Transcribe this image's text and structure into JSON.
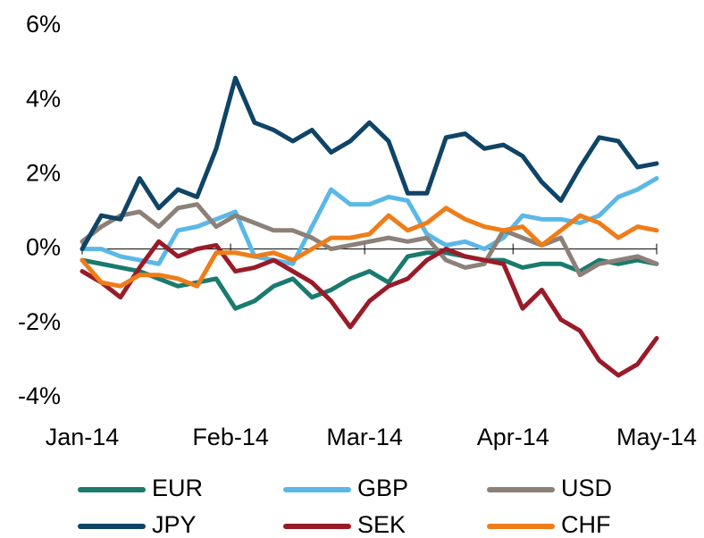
{
  "chart_data": {
    "type": "line",
    "x": [
      0,
      4,
      8,
      12,
      16,
      20,
      24,
      28,
      32,
      36,
      40,
      44,
      48,
      52,
      56,
      60,
      64,
      68,
      72,
      76,
      80,
      84,
      88,
      92,
      96,
      100,
      104,
      108,
      112,
      116,
      120
    ],
    "xlim": [
      0,
      120
    ],
    "xticks": [
      {
        "value": 0,
        "label": "Jan-14"
      },
      {
        "value": 31,
        "label": "Feb-14"
      },
      {
        "value": 59,
        "label": "Mar-14"
      },
      {
        "value": 90,
        "label": "Apr-14"
      },
      {
        "value": 120,
        "label": "May-14"
      }
    ],
    "ylim": [
      -4,
      6
    ],
    "yticks": [
      {
        "value": -4,
        "label": "-4%"
      },
      {
        "value": -2,
        "label": "-2%"
      },
      {
        "value": 0,
        "label": "0%"
      },
      {
        "value": 2,
        "label": "2%"
      },
      {
        "value": 4,
        "label": "4%"
      },
      {
        "value": 6,
        "label": "6%"
      }
    ],
    "series": [
      {
        "name": "EUR",
        "color": "#1a7a6e",
        "values": [
          -0.3,
          -0.4,
          -0.5,
          -0.6,
          -0.8,
          -1.0,
          -0.9,
          -0.8,
          -1.6,
          -1.4,
          -1.0,
          -0.8,
          -1.3,
          -1.1,
          -0.8,
          -0.6,
          -0.9,
          -0.2,
          -0.1,
          -0.1,
          -0.2,
          -0.3,
          -0.3,
          -0.5,
          -0.4,
          -0.4,
          -0.6,
          -0.3,
          -0.4,
          -0.3,
          -0.4
        ]
      },
      {
        "name": "GBP",
        "color": "#5bb8e6",
        "values": [
          0,
          0,
          -0.2,
          -0.3,
          -0.4,
          0.5,
          0.6,
          0.8,
          1.0,
          -0.2,
          -0.3,
          -0.4,
          0.6,
          1.6,
          1.2,
          1.2,
          1.4,
          1.3,
          0.4,
          0.1,
          0.2,
          0.0,
          0.3,
          0.9,
          0.8,
          0.8,
          0.7,
          0.9,
          1.4,
          1.6,
          1.9
        ]
      },
      {
        "name": "USD",
        "color": "#8c8078",
        "values": [
          0.2,
          0.6,
          0.9,
          1.0,
          0.6,
          1.1,
          1.2,
          0.6,
          0.9,
          0.7,
          0.5,
          0.5,
          0.3,
          0.0,
          0.1,
          0.2,
          0.3,
          0.2,
          0.3,
          -0.3,
          -0.5,
          -0.4,
          0.5,
          0.3,
          0.1,
          0.3,
          -0.7,
          -0.4,
          -0.3,
          -0.2,
          -0.4
        ]
      },
      {
        "name": "JPY",
        "color": "#0f4466",
        "values": [
          0,
          0.9,
          0.8,
          1.9,
          1.1,
          1.6,
          1.4,
          2.7,
          4.6,
          3.4,
          3.2,
          2.9,
          3.2,
          2.6,
          2.9,
          3.4,
          2.9,
          1.5,
          1.5,
          3.0,
          3.1,
          2.7,
          2.8,
          2.5,
          1.8,
          1.3,
          2.2,
          3.0,
          2.9,
          2.2,
          2.3
        ]
      },
      {
        "name": "SEK",
        "color": "#9a1b28",
        "values": [
          -0.6,
          -0.9,
          -1.3,
          -0.5,
          0.2,
          -0.2,
          0.0,
          0.1,
          -0.6,
          -0.5,
          -0.3,
          -0.6,
          -0.9,
          -1.4,
          -2.1,
          -1.4,
          -1.0,
          -0.8,
          -0.3,
          0.0,
          -0.2,
          -0.3,
          -0.4,
          -1.6,
          -1.1,
          -1.9,
          -2.2,
          -3.0,
          -3.4,
          -3.1,
          -2.4
        ]
      },
      {
        "name": "CHF",
        "color": "#ee7d1a",
        "values": [
          -0.3,
          -0.9,
          -1.0,
          -0.7,
          -0.7,
          -0.8,
          -1.0,
          -0.1,
          -0.1,
          -0.2,
          -0.1,
          -0.3,
          0.0,
          0.3,
          0.3,
          0.4,
          0.9,
          0.5,
          0.7,
          1.1,
          0.8,
          0.6,
          0.5,
          0.6,
          0.1,
          0.5,
          0.9,
          0.7,
          0.3,
          0.6,
          0.5
        ]
      }
    ]
  }
}
